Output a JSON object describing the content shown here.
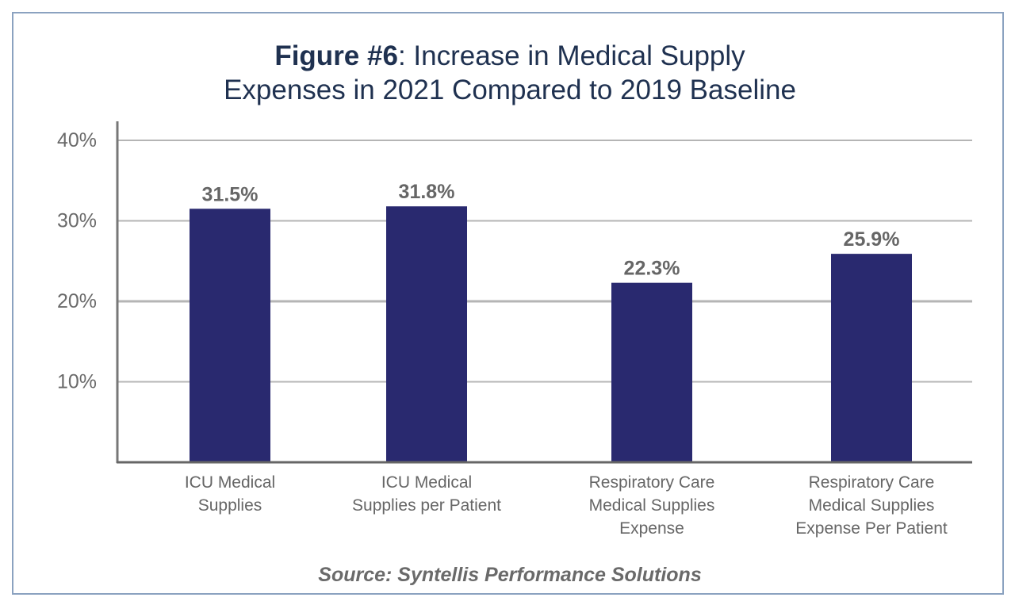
{
  "chart_data": {
    "type": "bar",
    "title_prefix": "Figure #6",
    "title_line1": ": Increase in Medical Supply",
    "title_line2": "Expenses in 2021 Compared to 2019 Baseline",
    "categories": [
      [
        "ICU Medical",
        "Supplies"
      ],
      [
        "ICU Medical",
        "Supplies per Patient"
      ],
      [
        "Respiratory Care",
        "Medical Supplies",
        "Expense"
      ],
      [
        "Respiratory Care",
        "Medical Supplies",
        "Expense Per Patient"
      ]
    ],
    "values": [
      31.5,
      31.8,
      22.3,
      25.9
    ],
    "data_labels": [
      "31.5%",
      "31.8%",
      "22.3%",
      "25.9%"
    ],
    "yticks": [
      10,
      20,
      30,
      40
    ],
    "ytick_labels": [
      "10%",
      "20%",
      "30%",
      "40%"
    ],
    "ylim": [
      0,
      40
    ],
    "xlabel": "",
    "ylabel": "",
    "grid": true,
    "legend": "none",
    "source": "Source: Syntellis Performance Solutions",
    "colors": {
      "bar": "#29296f",
      "title": "#1f3150",
      "border": "#8ba2c0",
      "grid": "#b5b5b5"
    }
  }
}
